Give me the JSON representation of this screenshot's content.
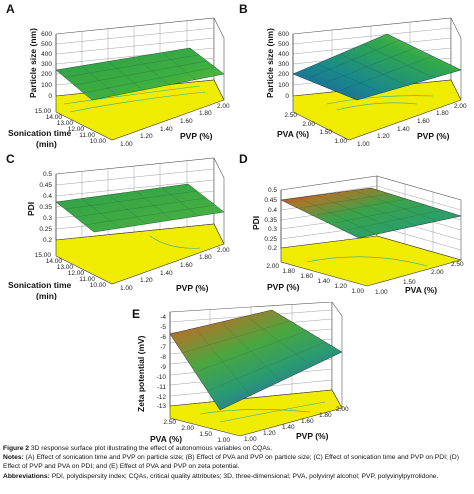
{
  "panels": {
    "A": {
      "label": "A",
      "z_title": "Particle size (nm)",
      "z_ticks": [
        "600",
        "500",
        "400",
        "300",
        "200",
        "100",
        "0"
      ],
      "x_title_lines": [
        "Sonication time",
        "(min)"
      ],
      "x_ticks": [
        "15.00",
        "14.00",
        "13.00",
        "12.00",
        "11.00",
        "10.00"
      ],
      "y_title": "PVP (%)",
      "y_ticks": [
        "1.00",
        "1.20",
        "1.40",
        "1.60",
        "1.80",
        "2.00"
      ]
    },
    "B": {
      "label": "B",
      "z_title": "Particle size (nm)",
      "z_ticks": [
        "600",
        "500",
        "400",
        "300",
        "200",
        "100",
        "0"
      ],
      "x_title": "PVA (%)",
      "x_ticks": [
        "2.50",
        "2.00",
        "1.50",
        "1.00"
      ],
      "y_title": "PVP (%)",
      "y_ticks": [
        "1.00",
        "1.20",
        "1.40",
        "1.60",
        "1.80",
        "2.00"
      ]
    },
    "C": {
      "label": "C",
      "z_title": "PDI",
      "z_ticks": [
        "0.5",
        "0.45",
        "0.4",
        "0.35",
        "0.3",
        "0.25",
        "0.2"
      ],
      "x_title_lines": [
        "Sonication time",
        "(min)"
      ],
      "x_ticks": [
        "15.00",
        "14.00",
        "13.00",
        "12.00",
        "11.00",
        "10.00"
      ],
      "y_title": "PVP (%)",
      "y_ticks": [
        "1.00",
        "1.20",
        "1.40",
        "1.60",
        "1.80",
        "2.00"
      ]
    },
    "D": {
      "label": "D",
      "z_title": "PDI",
      "z_ticks": [
        "0.5",
        "0.45",
        "0.4",
        "0.35",
        "0.3",
        "0.25",
        "0.2"
      ],
      "x_title": "PVP (%)",
      "x_ticks": [
        "2.00",
        "1.80",
        "1.60",
        "1.40",
        "1.20",
        "1.00"
      ],
      "y_title": "PVA (%)",
      "y_ticks": [
        "1.00",
        "1.50",
        "2.00",
        "2.50"
      ]
    },
    "E": {
      "label": "E",
      "z_title": "Zeta potential (mV)",
      "z_ticks": [
        "-4",
        "-5",
        "-6",
        "-7",
        "-8",
        "-9",
        "-10",
        "-11",
        "-12",
        "-13"
      ],
      "x_title": "PVA (%)",
      "x_ticks": [
        "2.50",
        "2.00",
        "1.50",
        "1.00"
      ],
      "y_title": "PVP (%)",
      "y_ticks": [
        "1.00",
        "1.20",
        "1.40",
        "1.60",
        "1.80",
        "2.00"
      ]
    }
  },
  "caption": {
    "figure_label": "Figure 2",
    "figure_text": "3D response surface plot illustrating the effect of autonomous variables on CQAs.",
    "notes_label": "Notes:",
    "notes_text": "(A) Effect of sonication time and PVP on particle size; (B) Effect of PVA and PVP on particle size; (C) Effect of sonication time and PVP on PDI; (D) Effect of PVP and PVA on PDI; and (E) Effect of PVA and PVP on zeta potential.",
    "abbr_label": "Abbreviations:",
    "abbr_text": "PDI, polydispersity index; CQAs, critical quality attributes; 3D, three-dimensional; PVA, polyvinyl alcohol; PVP, polyvinylpyrrolidone."
  }
}
